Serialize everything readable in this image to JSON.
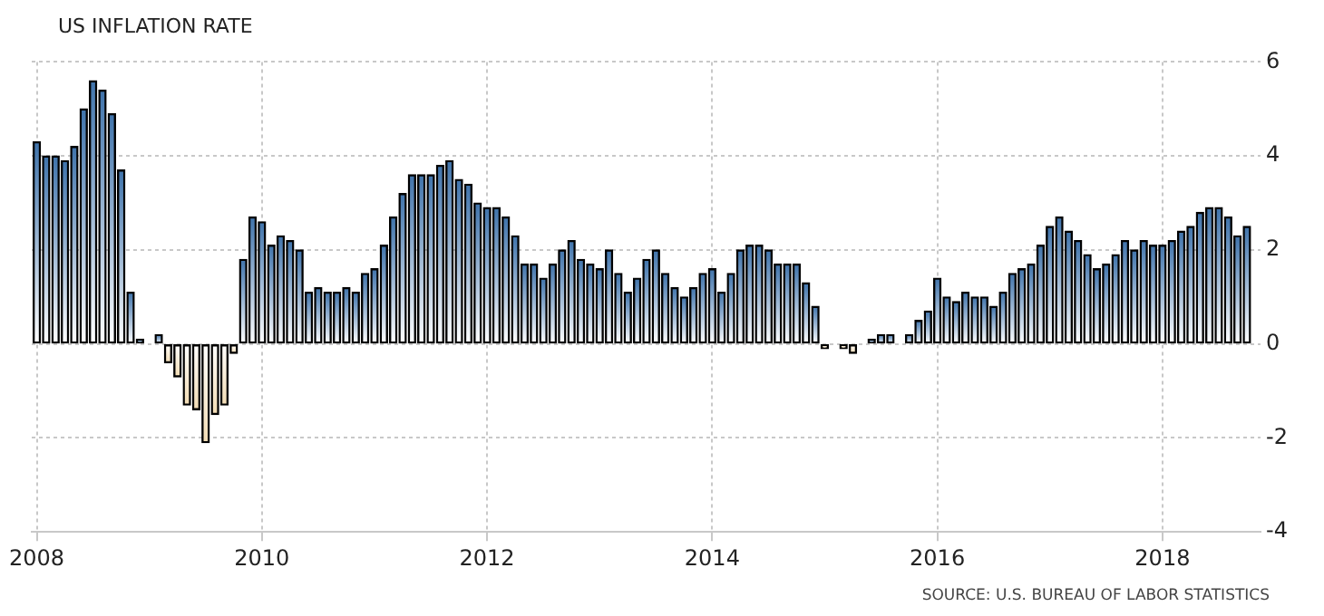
{
  "chart_data": {
    "type": "bar",
    "title": "US INFLATION RATE",
    "annotations": [
      "SOURCE: U.S. BUREAU OF LABOR STATISTICS"
    ],
    "x": [
      "2008-01",
      "2008-02",
      "2008-03",
      "2008-04",
      "2008-05",
      "2008-06",
      "2008-07",
      "2008-08",
      "2008-09",
      "2008-10",
      "2008-11",
      "2008-12",
      "2009-01",
      "2009-02",
      "2009-03",
      "2009-04",
      "2009-05",
      "2009-06",
      "2009-07",
      "2009-08",
      "2009-09",
      "2009-10",
      "2009-11",
      "2009-12",
      "2010-01",
      "2010-02",
      "2010-03",
      "2010-04",
      "2010-05",
      "2010-06",
      "2010-07",
      "2010-08",
      "2010-09",
      "2010-10",
      "2010-11",
      "2010-12",
      "2011-01",
      "2011-02",
      "2011-03",
      "2011-04",
      "2011-05",
      "2011-06",
      "2011-07",
      "2011-08",
      "2011-09",
      "2011-10",
      "2011-11",
      "2011-12",
      "2012-01",
      "2012-02",
      "2012-03",
      "2012-04",
      "2012-05",
      "2012-06",
      "2012-07",
      "2012-08",
      "2012-09",
      "2012-10",
      "2012-11",
      "2012-12",
      "2013-01",
      "2013-02",
      "2013-03",
      "2013-04",
      "2013-05",
      "2013-06",
      "2013-07",
      "2013-08",
      "2013-09",
      "2013-10",
      "2013-11",
      "2013-12",
      "2014-01",
      "2014-02",
      "2014-03",
      "2014-04",
      "2014-05",
      "2014-06",
      "2014-07",
      "2014-08",
      "2014-09",
      "2014-10",
      "2014-11",
      "2014-12",
      "2015-01",
      "2015-02",
      "2015-03",
      "2015-04",
      "2015-05",
      "2015-06",
      "2015-07",
      "2015-08",
      "2015-09",
      "2015-10",
      "2015-11",
      "2015-12",
      "2016-01",
      "2016-02",
      "2016-03",
      "2016-04",
      "2016-05",
      "2016-06",
      "2016-07",
      "2016-08",
      "2016-09",
      "2016-10",
      "2016-11",
      "2016-12",
      "2017-01",
      "2017-02",
      "2017-03",
      "2017-04",
      "2017-05",
      "2017-06",
      "2017-07",
      "2017-08",
      "2017-09",
      "2017-10",
      "2017-11",
      "2017-12",
      "2018-01",
      "2018-02",
      "2018-03",
      "2018-04",
      "2018-05",
      "2018-06",
      "2018-07",
      "2018-08",
      "2018-09",
      "2018-10"
    ],
    "values": [
      4.3,
      4.0,
      4.0,
      3.9,
      4.2,
      5.0,
      5.6,
      5.4,
      4.9,
      3.7,
      1.1,
      0.1,
      0.0,
      0.2,
      -0.4,
      -0.7,
      -1.3,
      -1.4,
      -2.1,
      -1.5,
      -1.3,
      -0.2,
      1.8,
      2.7,
      2.6,
      2.1,
      2.3,
      2.2,
      2.0,
      1.1,
      1.2,
      1.1,
      1.1,
      1.2,
      1.1,
      1.5,
      1.6,
      2.1,
      2.7,
      3.2,
      3.6,
      3.6,
      3.6,
      3.8,
      3.9,
      3.5,
      3.4,
      3.0,
      2.9,
      2.9,
      2.7,
      2.3,
      1.7,
      1.7,
      1.4,
      1.7,
      2.0,
      2.2,
      1.8,
      1.7,
      1.6,
      2.0,
      1.5,
      1.1,
      1.4,
      1.8,
      2.0,
      1.5,
      1.2,
      1.0,
      1.2,
      1.5,
      1.6,
      1.1,
      1.5,
      2.0,
      2.1,
      2.1,
      2.0,
      1.7,
      1.7,
      1.7,
      1.3,
      0.8,
      -0.1,
      0.0,
      -0.1,
      -0.2,
      0.0,
      0.1,
      0.2,
      0.2,
      0.0,
      0.2,
      0.5,
      0.7,
      1.4,
      1.0,
      0.9,
      1.1,
      1.0,
      1.0,
      0.8,
      1.1,
      1.5,
      1.6,
      1.7,
      2.1,
      2.5,
      2.7,
      2.4,
      2.2,
      1.9,
      1.6,
      1.7,
      1.9,
      2.2,
      2.0,
      2.2,
      2.1,
      2.1,
      2.2,
      2.4,
      2.5,
      2.8,
      2.9,
      2.9,
      2.7,
      2.3,
      2.5
    ],
    "colors": [
      "#3f73ab",
      "#3f73ab",
      "#3f73ab",
      "#3f73ab",
      "#3f73ab",
      "#3f73ab",
      "#3f73ab",
      "#3f73ab",
      "#3f73ab",
      "#3f73ab",
      "#3f73ab",
      "#3f73ab",
      "#3f73ab",
      "#3f73ab",
      "#f2dcb4",
      "#f2dcb4",
      "#f2dcb4",
      "#f2dcb4",
      "#f2dcb4",
      "#f2dcb4",
      "#f2dcb4",
      "#f2dcb4",
      "#3f73ab",
      "#3f73ab",
      "#3f73ab",
      "#3f73ab",
      "#3f73ab",
      "#3f73ab",
      "#3f73ab",
      "#3f73ab",
      "#3f73ab",
      "#3f73ab",
      "#3f73ab",
      "#3f73ab",
      "#3f73ab",
      "#3f73ab",
      "#3f73ab",
      "#3f73ab",
      "#3f73ab",
      "#3f73ab",
      "#3f73ab",
      "#3f73ab",
      "#3f73ab",
      "#3f73ab",
      "#3f73ab",
      "#3f73ab",
      "#3f73ab",
      "#3f73ab",
      "#3f73ab",
      "#3f73ab",
      "#3f73ab",
      "#3f73ab",
      "#3f73ab",
      "#3f73ab",
      "#3f73ab",
      "#3f73ab",
      "#3f73ab",
      "#3f73ab",
      "#3f73ab",
      "#3f73ab",
      "#3f73ab",
      "#3f73ab",
      "#3f73ab",
      "#3f73ab",
      "#3f73ab",
      "#3f73ab",
      "#3f73ab",
      "#3f73ab",
      "#3f73ab",
      "#3f73ab",
      "#3f73ab",
      "#3f73ab",
      "#3f73ab",
      "#3f73ab",
      "#3f73ab",
      "#3f73ab",
      "#3f73ab",
      "#3f73ab",
      "#3f73ab",
      "#3f73ab",
      "#3f73ab",
      "#3f73ab",
      "#3f73ab",
      "#3f73ab",
      "#f2dcb4",
      "#3f73ab",
      "#f2dcb4",
      "#f2dcb4",
      "#3f73ab",
      "#3f73ab",
      "#3f73ab",
      "#3f73ab",
      "#3f73ab",
      "#3f73ab",
      "#3f73ab",
      "#3f73ab",
      "#3f73ab",
      "#3f73ab",
      "#3f73ab",
      "#3f73ab",
      "#3f73ab",
      "#3f73ab",
      "#3f73ab",
      "#3f73ab",
      "#3f73ab",
      "#3f73ab",
      "#3f73ab",
      "#3f73ab",
      "#3f73ab",
      "#3f73ab",
      "#3f73ab",
      "#3f73ab",
      "#3f73ab",
      "#3f73ab",
      "#3f73ab",
      "#3f73ab",
      "#3f73ab",
      "#3f73ab",
      "#3f73ab",
      "#3f73ab",
      "#3f73ab",
      "#3f73ab",
      "#3f73ab",
      "#3f73ab",
      "#3f73ab",
      "#3f73ab",
      "#3f73ab",
      "#3f73ab",
      "#3f73ab",
      "#3f73ab"
    ],
    "xlim": [
      "2007-12-15",
      "2018-11-15"
    ],
    "xticks": [
      "2008",
      "2010",
      "2012",
      "2014",
      "2016",
      "2018"
    ],
    "ylim": [
      -4,
      6
    ],
    "yticks": [
      -4,
      -2,
      0,
      2,
      4,
      6
    ],
    "grid": true
  }
}
